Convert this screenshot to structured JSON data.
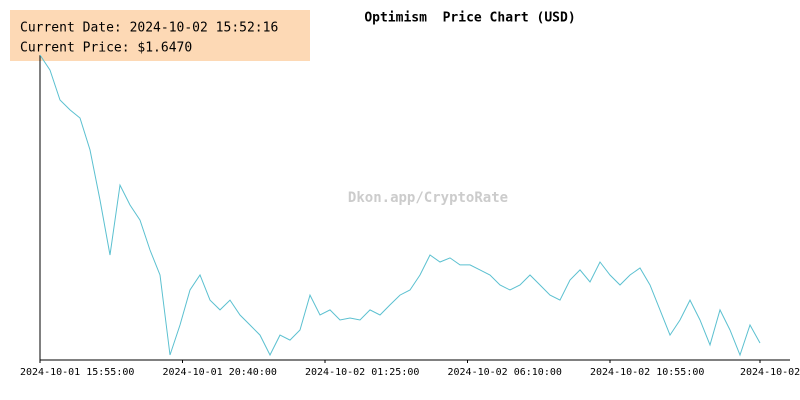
{
  "chart_data": {
    "type": "line",
    "title": "Optimism  Price Chart (USD)",
    "info": {
      "date": "Current Date: 2024-10-02 15:52:16",
      "price": "Current Price: $1.6470"
    },
    "watermark": "Dkon.app/CryptoRate",
    "color": "#5bc0d0",
    "x": [
      "2024-10-01 15:55:00",
      "2024-10-01 16:15:00",
      "2024-10-01 16:35:00",
      "2024-10-01 16:55:00",
      "2024-10-01 17:15:00",
      "2024-10-01 17:35:00",
      "2024-10-01 17:55:00",
      "2024-10-01 18:15:00",
      "2024-10-01 18:35:00",
      "2024-10-01 18:55:00",
      "2024-10-01 19:15:00",
      "2024-10-01 19:35:00",
      "2024-10-01 19:55:00",
      "2024-10-01 20:15:00",
      "2024-10-01 20:35:00",
      "2024-10-01 20:55:00",
      "2024-10-01 21:15:00",
      "2024-10-01 21:35:00",
      "2024-10-01 21:55:00",
      "2024-10-01 22:15:00",
      "2024-10-01 22:35:00",
      "2024-10-01 22:55:00",
      "2024-10-01 23:15:00",
      "2024-10-01 23:35:00",
      "2024-10-01 23:55:00",
      "2024-10-02 00:15:00",
      "2024-10-02 00:35:00",
      "2024-10-02 00:55:00",
      "2024-10-02 01:15:00",
      "2024-10-02 01:35:00",
      "2024-10-02 01:55:00",
      "2024-10-02 02:15:00",
      "2024-10-02 02:35:00",
      "2024-10-02 02:55:00",
      "2024-10-02 03:15:00",
      "2024-10-02 03:35:00",
      "2024-10-02 03:55:00",
      "2024-10-02 04:15:00",
      "2024-10-02 04:35:00",
      "2024-10-02 04:55:00",
      "2024-10-02 05:15:00",
      "2024-10-02 05:35:00",
      "2024-10-02 05:55:00",
      "2024-10-02 06:15:00",
      "2024-10-02 06:35:00",
      "2024-10-02 06:55:00",
      "2024-10-02 07:15:00",
      "2024-10-02 07:35:00",
      "2024-10-02 07:55:00",
      "2024-10-02 08:15:00",
      "2024-10-02 08:35:00",
      "2024-10-02 08:55:00",
      "2024-10-02 09:15:00",
      "2024-10-02 09:35:00",
      "2024-10-02 09:55:00",
      "2024-10-02 10:15:00",
      "2024-10-02 10:35:00",
      "2024-10-02 10:55:00",
      "2024-10-02 11:15:00",
      "2024-10-02 11:35:00",
      "2024-10-02 11:55:00",
      "2024-10-02 12:15:00",
      "2024-10-02 12:35:00",
      "2024-10-02 12:55:00",
      "2024-10-02 13:15:00",
      "2024-10-02 13:35:00",
      "2024-10-02 13:55:00",
      "2024-10-02 14:15:00",
      "2024-10-02 14:35:00",
      "2024-10-02 14:55:00",
      "2024-10-02 15:15:00",
      "2024-10-02 15:35:00",
      "2024-10-02 15:55:00"
    ],
    "values": [
      1.807,
      1.7986,
      1.7819,
      1.7764,
      1.7719,
      1.7541,
      1.7262,
      1.6955,
      1.7345,
      1.7234,
      1.715,
      1.6983,
      1.6844,
      1.6398,
      1.6565,
      1.676,
      1.6844,
      1.6704,
      1.6649,
      1.6704,
      1.6621,
      1.6565,
      1.6509,
      1.6398,
      1.6509,
      1.6481,
      1.6537,
      1.6732,
      1.6621,
      1.6649,
      1.6593,
      1.6604,
      1.6593,
      1.6649,
      1.6621,
      1.6677,
      1.6732,
      1.676,
      1.6844,
      1.6955,
      1.6916,
      1.6939,
      1.69,
      1.69,
      1.6872,
      1.6844,
      1.6788,
      1.676,
      1.6788,
      1.6844,
      1.6788,
      1.6732,
      1.6704,
      1.6816,
      1.6872,
      1.6805,
      1.6916,
      1.6844,
      1.6788,
      1.6844,
      1.6883,
      1.6788,
      1.6649,
      1.6509,
      1.6593,
      1.6704,
      1.6593,
      1.6454,
      1.6649,
      1.6537,
      1.6398,
      1.6565,
      1.6465
    ],
    "xlim": [
      "2024-10-01 15:55:00",
      "2024-10-02 15:55:00"
    ],
    "ylim": [
      1.637,
      1.807
    ],
    "xticks": [
      "2024-10-01 15:55:00",
      "2024-10-01 20:40:00",
      "2024-10-02 01:25:00",
      "2024-10-02 06:10:00",
      "2024-10-02 10:55:00",
      {
        "value": "2024-10-02 15:55:00",
        "label": "2024-10-02"
      }
    ]
  }
}
